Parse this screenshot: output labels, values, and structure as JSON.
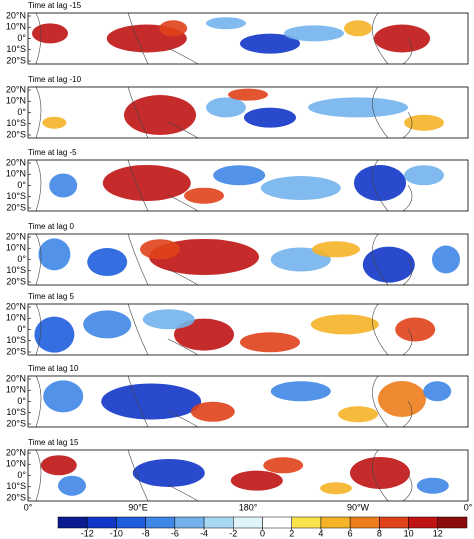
{
  "panels": [
    {
      "title": "Time at lag -15"
    },
    {
      "title": "Time at lag -10"
    },
    {
      "title": "Time at lag -5"
    },
    {
      "title": "Time at lag 0"
    },
    {
      "title": "Time at lag 5"
    },
    {
      "title": "Time at lag 10"
    },
    {
      "title": "Time at lag 15"
    }
  ],
  "lat_labels": [
    "20°N",
    "10°N",
    "0°",
    "10°S",
    "20°S"
  ],
  "lon_labels": [
    "0°",
    "90°E",
    "180°",
    "90°W",
    "0°"
  ],
  "colorbar": {
    "ticks": [
      -12,
      -10,
      -8,
      -6,
      -4,
      -2,
      0,
      2,
      4,
      6,
      8,
      10,
      12
    ],
    "colors": [
      "#0a1a8f",
      "#1236c6",
      "#1e5ede",
      "#3f86e6",
      "#73b2ec",
      "#a9d8f2",
      "#dff3fa",
      "#ffffff",
      "#fce24a",
      "#f5b428",
      "#ee7d1c",
      "#e0421a",
      "#c01414",
      "#8c0c0c"
    ]
  }
}
